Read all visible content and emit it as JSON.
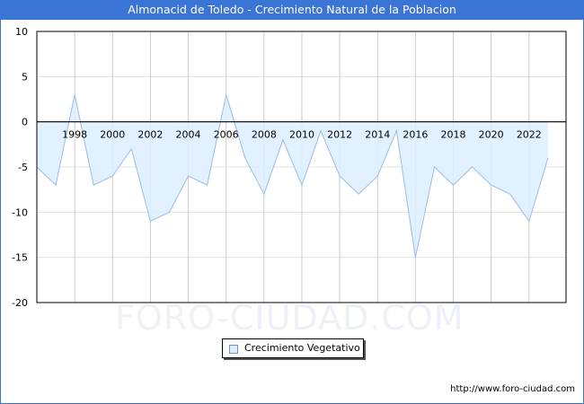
{
  "title": "Almonacid de Toledo - Crecimiento Natural de la Poblacion",
  "footer_url": "http://www.foro-ciudad.com",
  "watermark": {
    "part1": "FORO-",
    "part2": "CIUDAD.COM"
  },
  "legend": {
    "label": "Crecimiento Vegetativo"
  },
  "colors": {
    "title_bg": "#3a75d6",
    "fill": "#ddeeff",
    "line": "#9bbbe6",
    "grid": "#cccccc"
  },
  "chart_data": {
    "type": "area",
    "title": "Almonacid de Toledo - Crecimiento Natural de la Poblacion",
    "xlabel": "",
    "ylabel": "",
    "ylim": [
      -20,
      10
    ],
    "y_ticks": [
      10,
      5,
      0,
      -5,
      -10,
      -15,
      -20
    ],
    "x_tick_labels": [
      "1998",
      "2000",
      "2002",
      "2004",
      "2006",
      "2008",
      "2010",
      "2012",
      "2014",
      "2016",
      "2018",
      "2020",
      "2022"
    ],
    "grid": true,
    "legend_position": "bottom",
    "series": [
      {
        "name": "Crecimiento Vegetativo",
        "x": [
          1996,
          1997,
          1998,
          1999,
          2000,
          2001,
          2002,
          2003,
          2004,
          2005,
          2006,
          2007,
          2008,
          2009,
          2010,
          2011,
          2012,
          2013,
          2014,
          2015,
          2016,
          2017,
          2018,
          2019,
          2020,
          2021,
          2022,
          2023
        ],
        "values": [
          -5,
          -7,
          3,
          -7,
          -6,
          -3,
          -11,
          -10,
          -6,
          -7,
          3,
          -4,
          -8,
          -2,
          -7,
          -1,
          -6,
          -8,
          -6,
          -1,
          -15,
          -5,
          -7,
          -5,
          -7,
          -8,
          -11,
          -4
        ]
      }
    ]
  }
}
